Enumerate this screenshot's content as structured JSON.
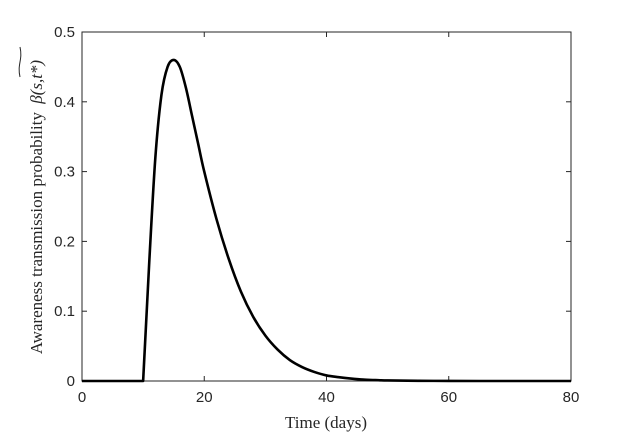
{
  "chart_data": {
    "type": "line",
    "title": "",
    "xlabel": "Time (days)",
    "ylabel": "Awareness transmission probability",
    "ylabel_symbol": "β(s,t*)",
    "xlim": [
      0,
      80
    ],
    "ylim": [
      0,
      0.5
    ],
    "xticks": [
      "0",
      "20",
      "40",
      "60",
      "80"
    ],
    "yticks": [
      "0",
      "0.1",
      "0.2",
      "0.3",
      "0.4",
      "0.5"
    ],
    "grid": false,
    "legend": "none",
    "series": [
      {
        "color": "#000000",
        "x": [
          0,
          5,
          9.9,
          10,
          11,
          12,
          13,
          14,
          15,
          16,
          17,
          18,
          19,
          20,
          22,
          24,
          26,
          28,
          30,
          32,
          34,
          36,
          38,
          40,
          42,
          44,
          46,
          48,
          50,
          55,
          60,
          65,
          70,
          75,
          80
        ],
        "y": [
          0,
          0,
          0,
          0,
          0.17,
          0.32,
          0.41,
          0.45,
          0.46,
          0.45,
          0.42,
          0.38,
          0.34,
          0.3,
          0.232,
          0.175,
          0.128,
          0.092,
          0.065,
          0.045,
          0.03,
          0.02,
          0.013,
          0.008,
          0.0055,
          0.0035,
          0.002,
          0.0013,
          0.0008,
          0.0003,
          0.0001,
          0,
          0,
          0,
          0
        ]
      }
    ]
  }
}
